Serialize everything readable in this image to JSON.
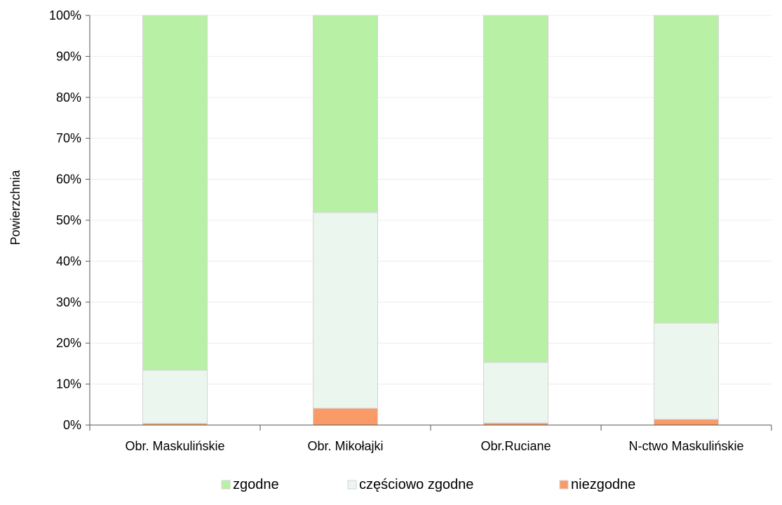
{
  "chart_data": {
    "type": "bar",
    "stacked": true,
    "percent_stacked": true,
    "categories": [
      "Obr. Maskulińskie",
      "Obr. Mikołajki",
      "Obr.Ruciane",
      "N-ctwo Maskulińskie"
    ],
    "series": [
      {
        "name": "niezgodne",
        "values": [
          0.4,
          4.1,
          0.5,
          1.4
        ],
        "color": "#fa9a68"
      },
      {
        "name": "częściowo zgodne",
        "values": [
          13.0,
          47.8,
          14.8,
          23.5
        ],
        "color": "#ebf6ee"
      },
      {
        "name": "zgodne",
        "values": [
          86.6,
          48.1,
          84.7,
          75.1
        ],
        "color": "#b8f1a5"
      }
    ],
    "legend_order": [
      "zgodne",
      "częściowo zgodne",
      "niezgodne"
    ],
    "ylabel": "Powierzchnia",
    "ylim": [
      0,
      100
    ],
    "yticks": [
      "0%",
      "10%",
      "20%",
      "30%",
      "40%",
      "50%",
      "60%",
      "70%",
      "80%",
      "90%",
      "100%"
    ],
    "grid": true,
    "legend_position": "bottom"
  }
}
